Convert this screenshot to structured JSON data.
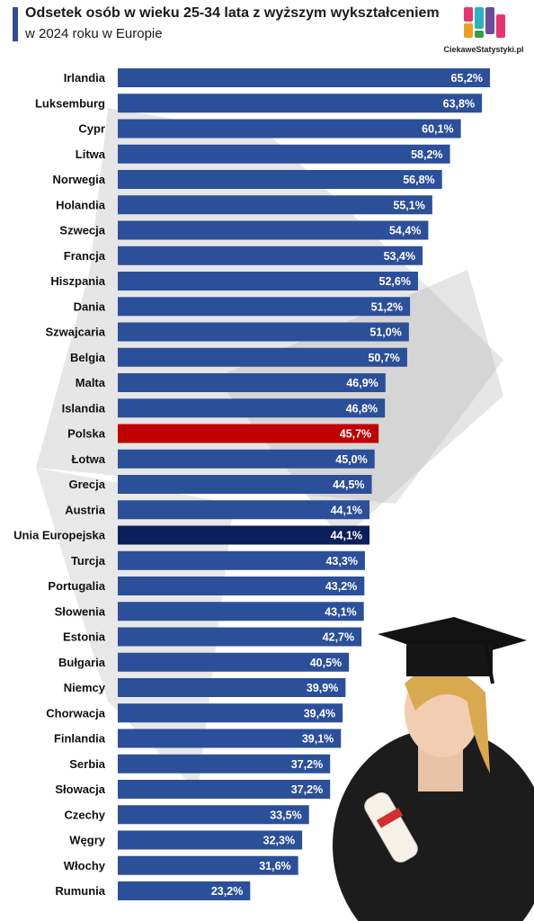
{
  "header": {
    "title": "Odsetek osób w wieku 25-34 lata z wyższym wykształceniem",
    "subtitle": "w 2024 roku w Europie"
  },
  "brand": {
    "name": "CiekaweStatystyki.pl"
  },
  "colors": {
    "bar": "#2c4f9a",
    "highlight": "#c00000",
    "eu": "#0b1f5c",
    "accent": "#2c4f9a"
  },
  "chart_data": {
    "type": "bar",
    "orientation": "horizontal",
    "title": "Odsetek osób w wieku 25-34 lata z wyższym wykształceniem",
    "subtitle": "w 2024 roku w Europie",
    "unit": "%",
    "categories": [
      "Irlandia",
      "Luksemburg",
      "Cypr",
      "Litwa",
      "Norwegia",
      "Holandia",
      "Szwecja",
      "Francja",
      "Hiszpania",
      "Dania",
      "Szwajcaria",
      "Belgia",
      "Malta",
      "Islandia",
      "Polska",
      "Łotwa",
      "Grecja",
      "Austria",
      "Unia Europejska",
      "Turcja",
      "Portugalia",
      "Słowenia",
      "Estonia",
      "Bułgaria",
      "Niemcy",
      "Chorwacja",
      "Finlandia",
      "Serbia",
      "Słowacja",
      "Czechy",
      "Węgry",
      "Włochy",
      "Rumunia"
    ],
    "values": [
      65.2,
      63.8,
      60.1,
      58.2,
      56.8,
      55.1,
      54.4,
      53.4,
      52.6,
      51.2,
      51.0,
      50.7,
      46.9,
      46.8,
      45.7,
      45.0,
      44.5,
      44.1,
      44.1,
      43.3,
      43.2,
      43.1,
      42.7,
      40.5,
      39.9,
      39.4,
      39.1,
      37.2,
      37.2,
      33.5,
      32.3,
      31.6,
      23.2
    ],
    "value_labels": [
      "65,2%",
      "63,8%",
      "60,1%",
      "58,2%",
      "56,8%",
      "55,1%",
      "54,4%",
      "53,4%",
      "52,6%",
      "51,2%",
      "51,0%",
      "50,7%",
      "46,9%",
      "46,8%",
      "45,7%",
      "45,0%",
      "44,5%",
      "44,1%",
      "44,1%",
      "43,3%",
      "43,2%",
      "43,1%",
      "42,7%",
      "40,5%",
      "39,9%",
      "39,4%",
      "39,1%",
      "37,2%",
      "37,2%",
      "33,5%",
      "32,3%",
      "31,6%",
      "23,2%"
    ],
    "highlights": {
      "Polska": "#c00000",
      "Unia Europejska": "#0b1f5c"
    },
    "xlim": [
      0,
      65.2
    ],
    "grid": false,
    "legend": "none"
  }
}
